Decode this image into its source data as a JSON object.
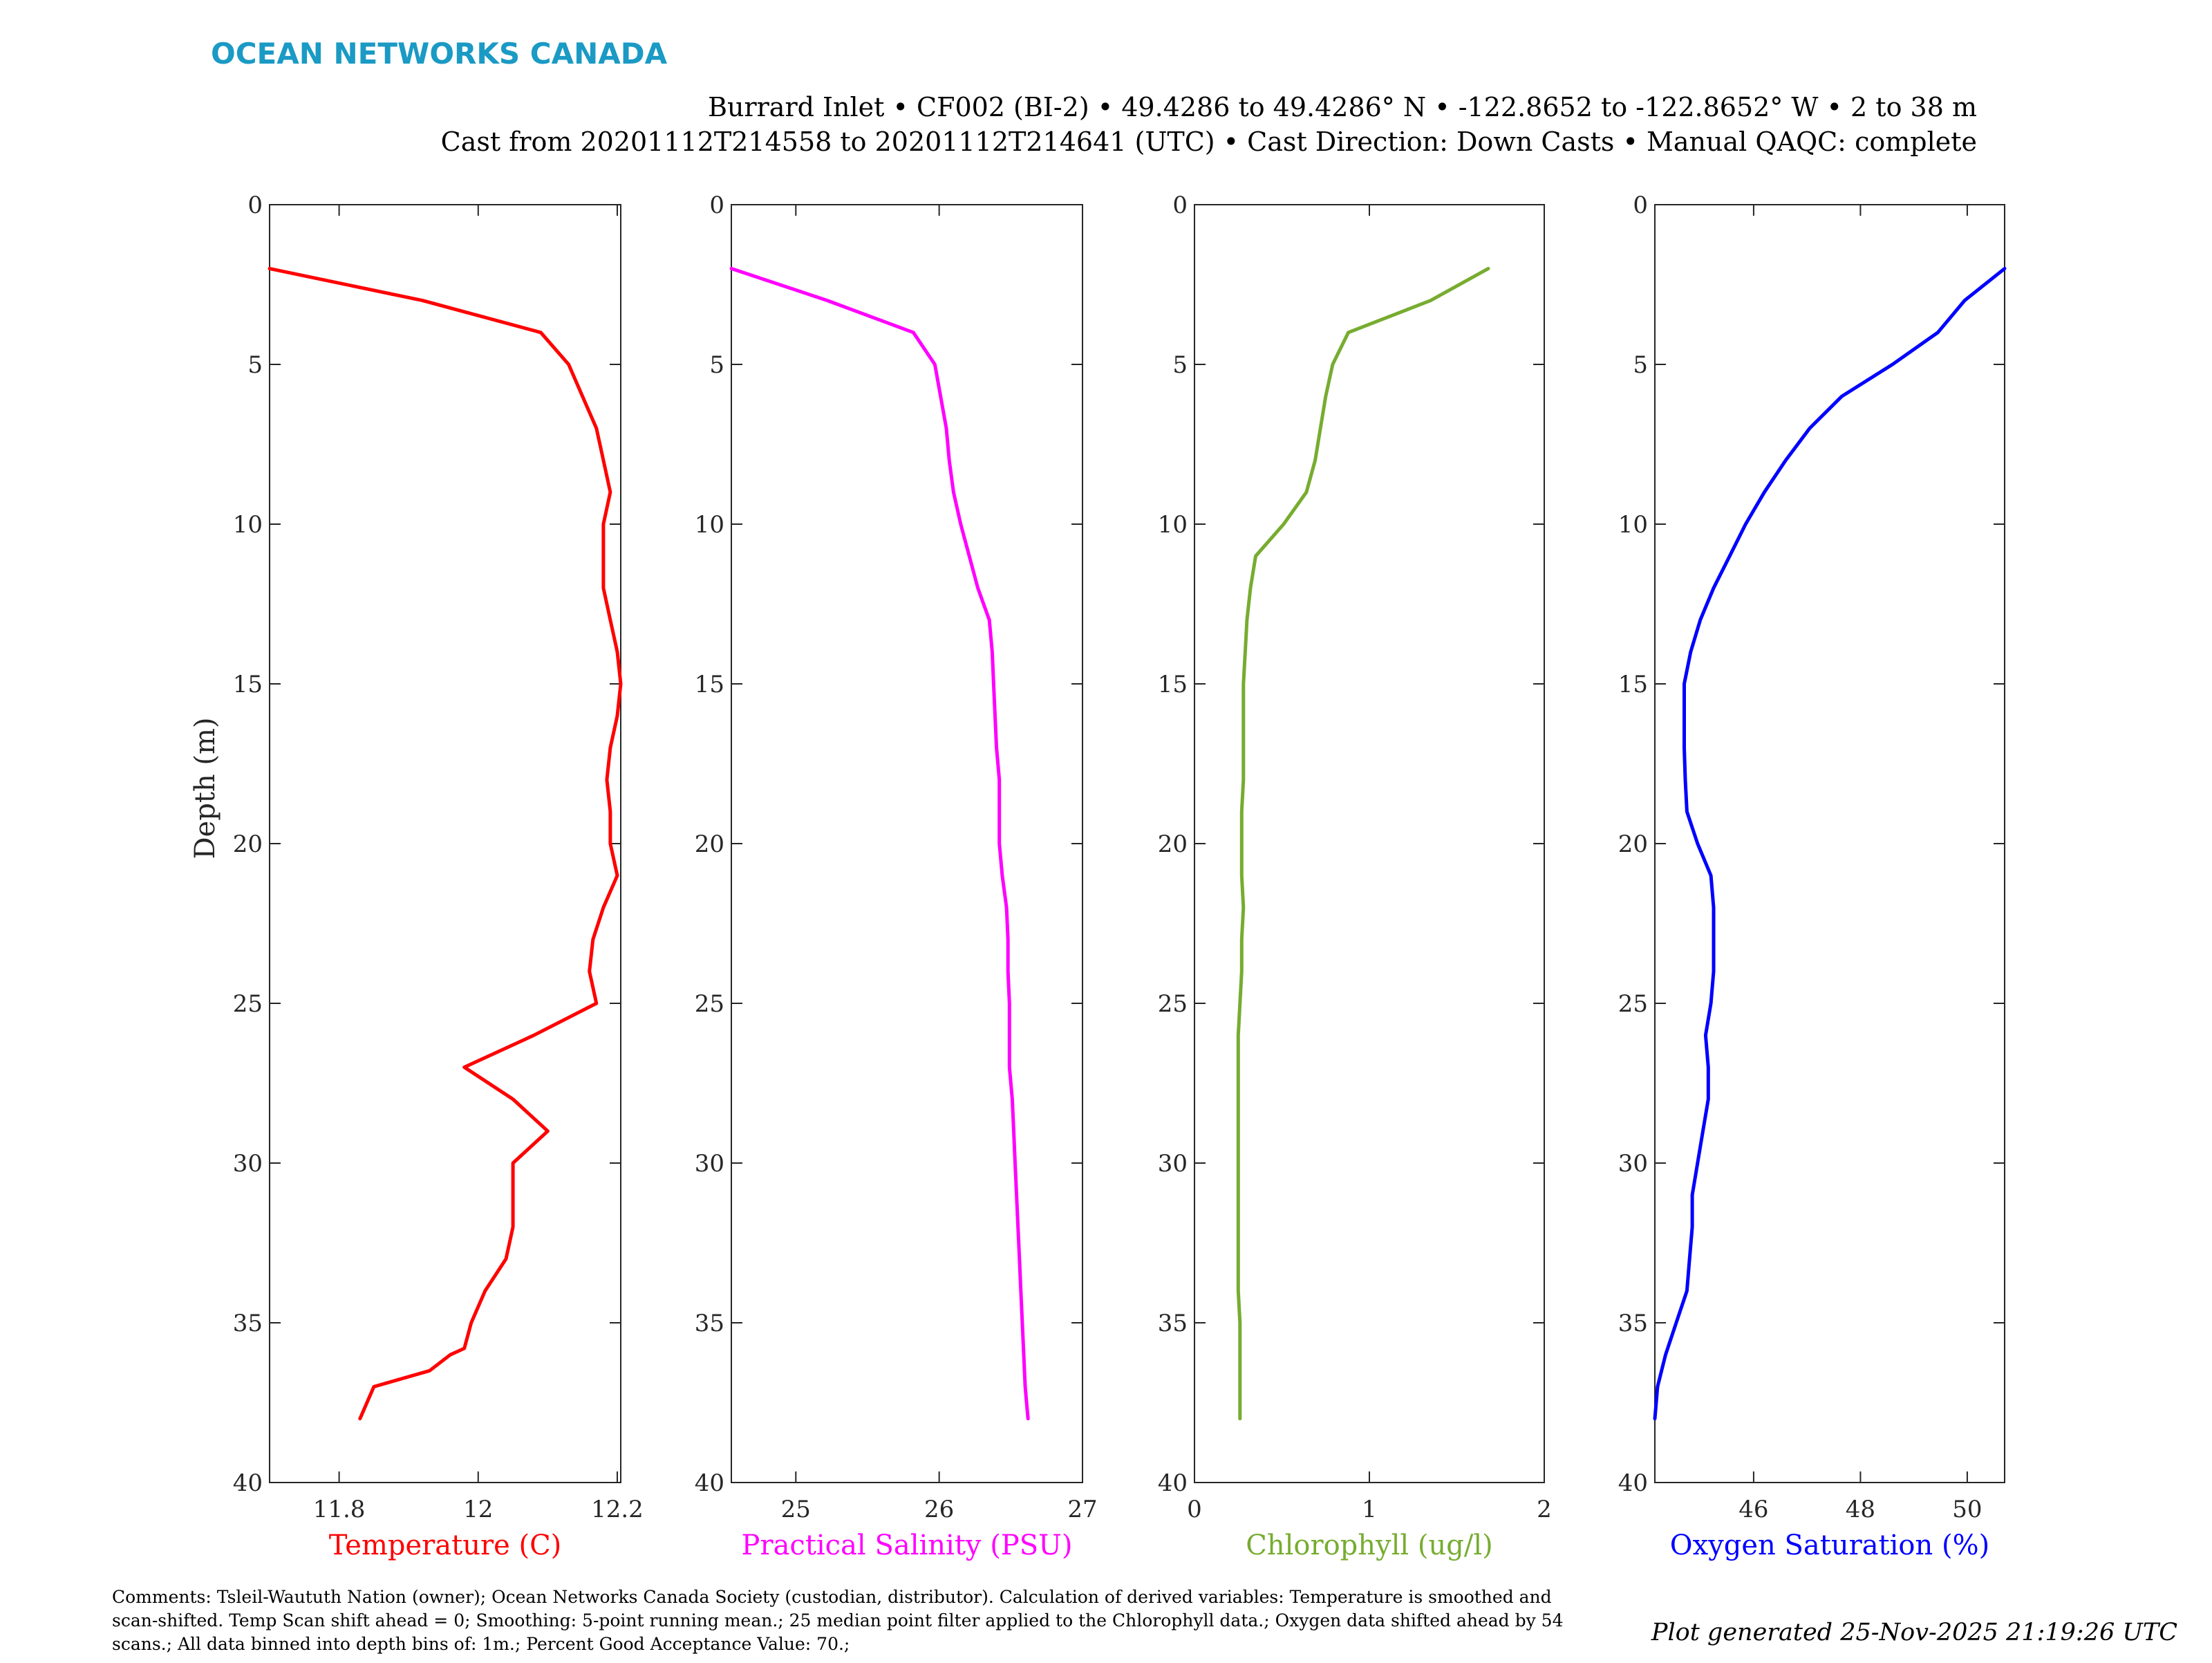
{
  "brand": {
    "name": "OCEAN NETWORKS CANADA",
    "color": "#1a9ac4"
  },
  "header": {
    "line1": "Burrard Inlet • CF002 (BI-2) • 49.4286 to 49.4286° N • -122.8652 to -122.8652° W • 2 to 38 m",
    "line2": "Cast from 20201112T214558 to 20201112T214641 (UTC) • Cast Direction: Down Casts • Manual QAQC: complete"
  },
  "footer": {
    "comments_lines": [
      "Comments: Tsleil-Waututh Nation (owner); Ocean Networks Canada Society (custodian, distributor). Calculation of derived variables: Temperature is smoothed and",
      "scan-shifted. Temp Scan shift ahead = 0; Smoothing: 5-point running mean.; 25 median point filter applied to the Chlorophyll data.; Oxygen data shifted ahead by 54",
      "scans.; All data binned into depth bins of: 1m.; Percent Good Acceptance Value: 70.;"
    ],
    "generated": "Plot generated 25-Nov-2025 21:19:26 UTC"
  },
  "chart_data": [
    {
      "type": "line",
      "ylabel": "Depth (m)",
      "xlabel": "Temperature (C)",
      "color": "#ff0000",
      "xlim": [
        11.7,
        12.205
      ],
      "ylim": [
        0,
        40
      ],
      "y_reversed": true,
      "xticks": [
        11.8,
        12,
        12.2
      ],
      "xtick_labels": [
        "11.8",
        "12",
        "12.2"
      ],
      "yticks": [
        0,
        5,
        10,
        15,
        20,
        25,
        30,
        35,
        40
      ],
      "ytick_labels": [
        "0",
        "5",
        "10",
        "15",
        "20",
        "25",
        "30",
        "35",
        "40"
      ],
      "x": [
        11.7,
        11.92,
        12.09,
        12.13,
        12.15,
        12.17,
        12.18,
        12.19,
        12.18,
        12.18,
        12.18,
        12.19,
        12.2,
        12.205,
        12.2,
        12.19,
        12.185,
        12.19,
        12.19,
        12.2,
        12.18,
        12.165,
        12.16,
        12.17,
        12.08,
        11.98,
        12.05,
        12.1,
        12.05,
        12.05,
        12.05,
        12.04,
        12.01,
        11.99,
        11.98,
        11.96,
        11.93,
        11.85,
        11.83
      ],
      "y": [
        2,
        3,
        4,
        5,
        6,
        7,
        8,
        9,
        10,
        11,
        12,
        13,
        14,
        15,
        16,
        17,
        18,
        19,
        20,
        21,
        22,
        23,
        24,
        25,
        26,
        27,
        28,
        29,
        30,
        31,
        32,
        33,
        34,
        35,
        35.8,
        36,
        36.5,
        37,
        38
      ]
    },
    {
      "type": "line",
      "xlabel": "Practical Salinity (PSU)",
      "color": "#ff00ff",
      "xlim": [
        24.55,
        27.0
      ],
      "ylim": [
        0,
        40
      ],
      "y_reversed": true,
      "xticks": [
        25,
        26,
        27
      ],
      "xtick_labels": [
        "25",
        "26",
        "27"
      ],
      "yticks": [
        0,
        5,
        10,
        15,
        20,
        25,
        30,
        35,
        40
      ],
      "ytick_labels": [
        "0",
        "5",
        "10",
        "15",
        "20",
        "25",
        "30",
        "35",
        "40"
      ],
      "x": [
        24.55,
        25.22,
        25.82,
        25.97,
        26.01,
        26.05,
        26.07,
        26.1,
        26.15,
        26.21,
        26.27,
        26.35,
        26.37,
        26.38,
        26.39,
        26.4,
        26.42,
        26.42,
        26.42,
        26.44,
        26.47,
        26.48,
        26.48,
        26.49,
        26.49,
        26.49,
        26.51,
        26.52,
        26.53,
        26.54,
        26.55,
        26.56,
        26.57,
        26.58,
        26.59,
        26.6,
        26.61,
        26.62
      ],
      "y": [
        2,
        3,
        4,
        5,
        6,
        7,
        8,
        9,
        10,
        11,
        12,
        13,
        14,
        15,
        16,
        17,
        18,
        19,
        20,
        21,
        22,
        23,
        24,
        25,
        26,
        27,
        28,
        29,
        30,
        31,
        32,
        33,
        34,
        35,
        36,
        37,
        37.5,
        38
      ]
    },
    {
      "type": "line",
      "xlabel": "Chlorophyll (ug/l)",
      "color": "#77ac30",
      "xlim": [
        0,
        2
      ],
      "ylim": [
        0,
        40
      ],
      "y_reversed": true,
      "xticks": [
        0,
        1,
        2
      ],
      "xtick_labels": [
        "0",
        "1",
        "2"
      ],
      "yticks": [
        0,
        5,
        10,
        15,
        20,
        25,
        30,
        35,
        40
      ],
      "ytick_labels": [
        "0",
        "5",
        "10",
        "15",
        "20",
        "25",
        "30",
        "35",
        "40"
      ],
      "x": [
        1.68,
        1.35,
        0.88,
        0.79,
        0.75,
        0.72,
        0.69,
        0.64,
        0.51,
        0.35,
        0.32,
        0.3,
        0.29,
        0.28,
        0.28,
        0.28,
        0.28,
        0.27,
        0.27,
        0.27,
        0.28,
        0.27,
        0.27,
        0.26,
        0.25,
        0.25,
        0.25,
        0.25,
        0.25,
        0.25,
        0.25,
        0.25,
        0.25,
        0.26,
        0.26,
        0.26,
        0.26
      ],
      "y": [
        2,
        3,
        4,
        5,
        6,
        7,
        8,
        9,
        10,
        11,
        12,
        13,
        14,
        15,
        16,
        17,
        18,
        19,
        20,
        21,
        22,
        23,
        24,
        25,
        26,
        27,
        28,
        29,
        30,
        31,
        32,
        33,
        34,
        35,
        36,
        37,
        38
      ]
    },
    {
      "type": "line",
      "xlabel": "Oxygen Saturation (%)",
      "color": "#0000ff",
      "xlim": [
        44.15,
        50.7
      ],
      "ylim": [
        0,
        40
      ],
      "y_reversed": true,
      "xticks": [
        46,
        48,
        50
      ],
      "xtick_labels": [
        "46",
        "48",
        "50"
      ],
      "yticks": [
        0,
        5,
        10,
        15,
        20,
        25,
        30,
        35,
        40
      ],
      "ytick_labels": [
        "0",
        "5",
        "10",
        "15",
        "20",
        "25",
        "30",
        "35",
        "40"
      ],
      "x": [
        50.7,
        49.95,
        49.45,
        48.6,
        47.65,
        47.05,
        46.6,
        46.2,
        45.85,
        45.55,
        45.25,
        45.0,
        44.82,
        44.7,
        44.7,
        44.7,
        44.72,
        44.75,
        44.95,
        45.2,
        45.25,
        45.25,
        45.25,
        45.2,
        45.1,
        45.15,
        45.15,
        45.05,
        44.95,
        44.85,
        44.85,
        44.8,
        44.75,
        44.55,
        44.35,
        44.2,
        44.15
      ],
      "y": [
        2,
        3,
        4,
        5,
        6,
        7,
        8,
        9,
        10,
        11,
        12,
        13,
        14,
        15,
        16,
        17,
        18,
        19,
        20,
        21,
        22,
        23,
        24,
        25,
        26,
        27,
        28,
        29,
        30,
        31,
        32,
        33,
        34,
        35,
        36,
        37,
        38
      ]
    }
  ]
}
